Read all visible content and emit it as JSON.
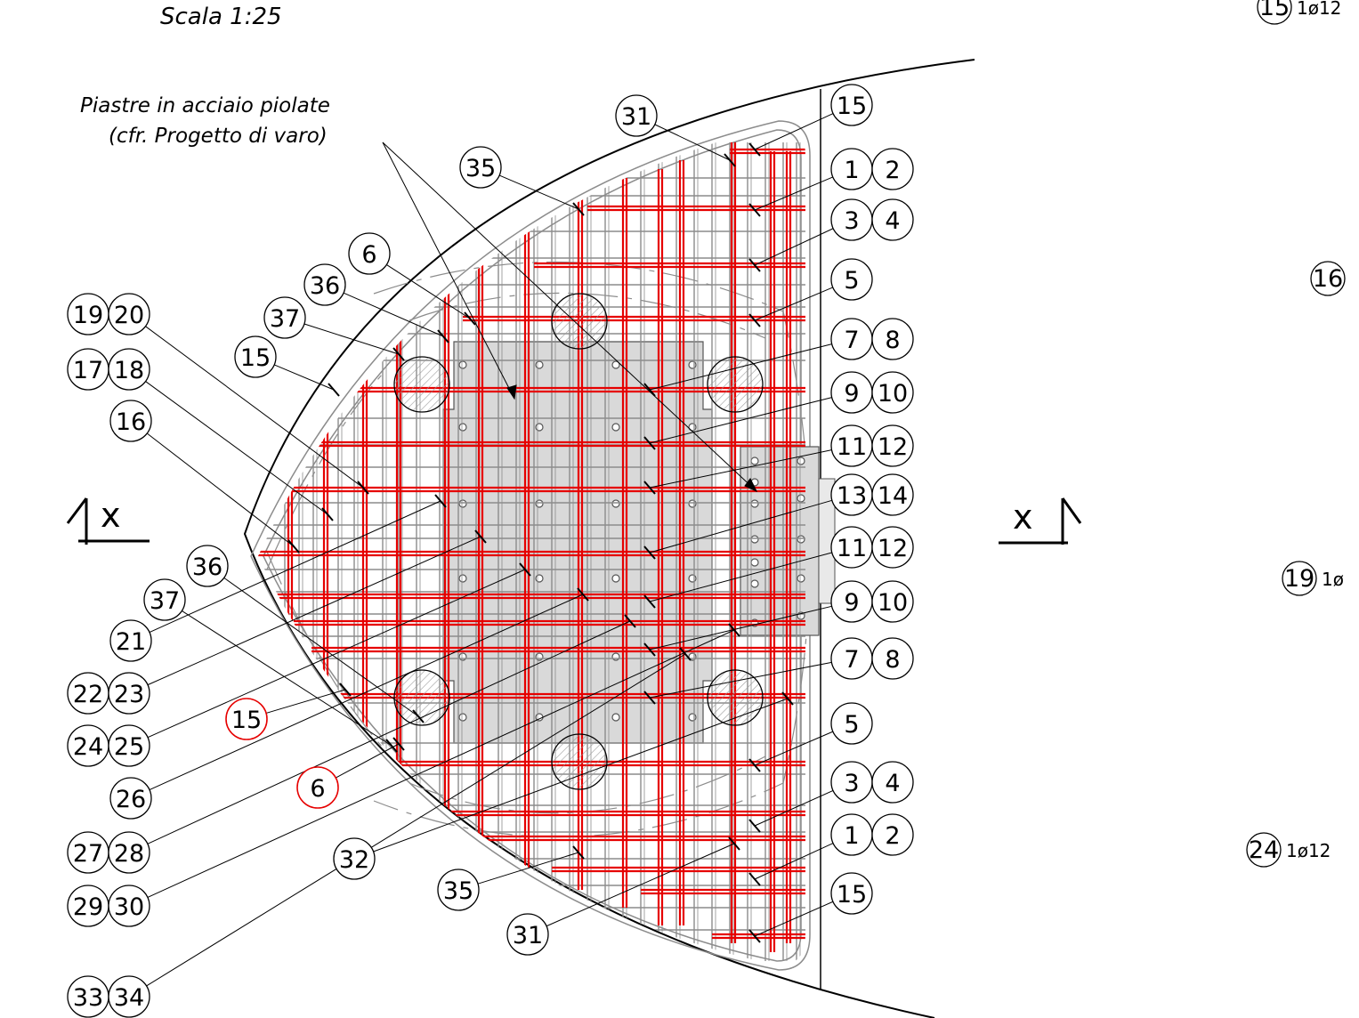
{
  "scale_label": "Scala 1:25",
  "note": {
    "line1": "Piastre in acciaio piolate",
    "line2": "(cfr. Progetto di varo)"
  },
  "section_mark": "x",
  "colors": {
    "line": "#000000",
    "rebar_red": "#e60000",
    "rebar_grey": "#8c8c8c",
    "plate_fill": "#d9d9d9",
    "pipe_hatch": "#9a9a9a"
  },
  "callouts": [
    {
      "id": "c-31-top",
      "labels": [
        "31"
      ],
      "color": "black"
    },
    {
      "id": "c-35-top",
      "labels": [
        "35"
      ],
      "color": "black"
    },
    {
      "id": "c-6-top",
      "labels": [
        "6"
      ],
      "color": "black"
    },
    {
      "id": "c-36-top",
      "labels": [
        "36"
      ],
      "color": "black"
    },
    {
      "id": "c-37-top",
      "labels": [
        "37"
      ],
      "color": "black"
    },
    {
      "id": "c-15-left",
      "labels": [
        "15"
      ],
      "color": "black"
    },
    {
      "id": "c-19-20",
      "labels": [
        "19",
        "20"
      ],
      "color": "black"
    },
    {
      "id": "c-17-18",
      "labels": [
        "17",
        "18"
      ],
      "color": "black"
    },
    {
      "id": "c-16",
      "labels": [
        "16"
      ],
      "color": "black"
    },
    {
      "id": "c-36-bot",
      "labels": [
        "36"
      ],
      "color": "black"
    },
    {
      "id": "c-37-bot",
      "labels": [
        "37"
      ],
      "color": "black"
    },
    {
      "id": "c-21",
      "labels": [
        "21"
      ],
      "color": "black"
    },
    {
      "id": "c-22-23",
      "labels": [
        "22",
        "23"
      ],
      "color": "black"
    },
    {
      "id": "c-15-red",
      "labels": [
        "15"
      ],
      "color": "red"
    },
    {
      "id": "c-24-25",
      "labels": [
        "24",
        "25"
      ],
      "color": "black"
    },
    {
      "id": "c-26",
      "labels": [
        "26"
      ],
      "color": "black"
    },
    {
      "id": "c-6-red",
      "labels": [
        "6"
      ],
      "color": "red"
    },
    {
      "id": "c-27-28",
      "labels": [
        "27",
        "28"
      ],
      "color": "black"
    },
    {
      "id": "c-32",
      "labels": [
        "32"
      ],
      "color": "black"
    },
    {
      "id": "c-29-30",
      "labels": [
        "29",
        "30"
      ],
      "color": "black"
    },
    {
      "id": "c-35-bot",
      "labels": [
        "35"
      ],
      "color": "black"
    },
    {
      "id": "c-31-bot",
      "labels": [
        "31"
      ],
      "color": "black"
    },
    {
      "id": "c-33-34",
      "labels": [
        "33",
        "34"
      ],
      "color": "black"
    },
    {
      "id": "r-15-top",
      "labels": [
        "15"
      ],
      "color": "black"
    },
    {
      "id": "r-1-2-top",
      "labels": [
        "1",
        "2"
      ],
      "color": "black"
    },
    {
      "id": "r-3-4-top",
      "labels": [
        "3",
        "4"
      ],
      "color": "black"
    },
    {
      "id": "r-5-top",
      "labels": [
        "5"
      ],
      "color": "black"
    },
    {
      "id": "r-7-8-top",
      "labels": [
        "7",
        "8"
      ],
      "color": "black"
    },
    {
      "id": "r-9-10-top",
      "labels": [
        "9",
        "10"
      ],
      "color": "black"
    },
    {
      "id": "r-11-12-top",
      "labels": [
        "11",
        "12"
      ],
      "color": "black"
    },
    {
      "id": "r-13-14",
      "labels": [
        "13",
        "14"
      ],
      "color": "black"
    },
    {
      "id": "r-11-12-bot",
      "labels": [
        "11",
        "12"
      ],
      "color": "black"
    },
    {
      "id": "r-9-10-bot",
      "labels": [
        "9",
        "10"
      ],
      "color": "black"
    },
    {
      "id": "r-7-8-bot",
      "labels": [
        "7",
        "8"
      ],
      "color": "black"
    },
    {
      "id": "r-5-bot",
      "labels": [
        "5"
      ],
      "color": "black"
    },
    {
      "id": "r-3-4-bot",
      "labels": [
        "3",
        "4"
      ],
      "color": "black"
    },
    {
      "id": "r-1-2-bot",
      "labels": [
        "1",
        "2"
      ],
      "color": "black"
    },
    {
      "id": "r-15-bot",
      "labels": [
        "15"
      ],
      "color": "black"
    }
  ],
  "side_labels": [
    {
      "id": "s-15",
      "num": "15",
      "text": "1ø12"
    },
    {
      "id": "s-16",
      "num": "16",
      "text": ""
    },
    {
      "id": "s-19",
      "num": "19",
      "text": "1ø"
    },
    {
      "id": "s-24",
      "num": "24",
      "text": "1ø12"
    }
  ]
}
